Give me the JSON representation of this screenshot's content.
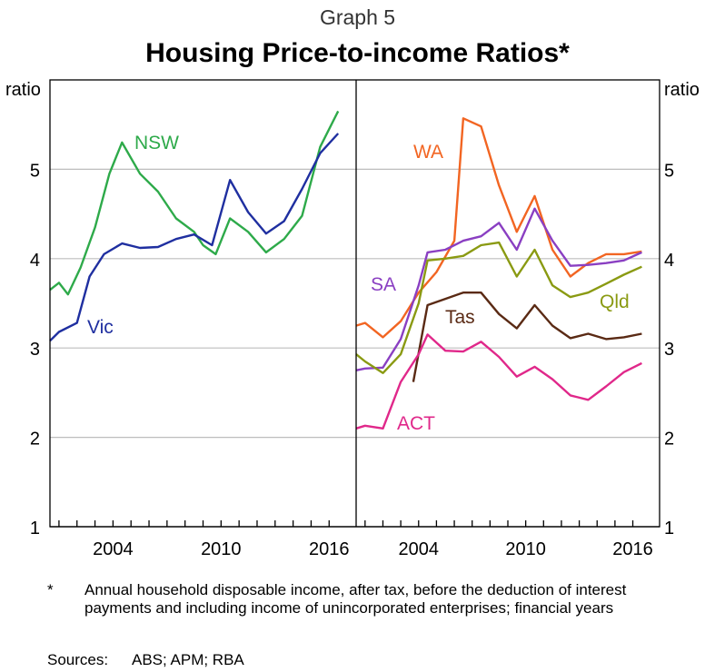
{
  "graph_label": "Graph 5",
  "footnote": {
    "marker": "*",
    "text": "Annual household disposable income, after tax, before the deduction of interest payments and including income of unincorporated enterprises; financial years"
  },
  "sources": {
    "label": "Sources:",
    "text": "ABS; APM; RBA"
  },
  "chart_data": [
    {
      "type": "line",
      "title": "Housing Price-to-income Ratios*",
      "ylabel": "ratio",
      "ylim": [
        1,
        6
      ],
      "xlim": [
        2000,
        2017
      ],
      "yticks": [
        1,
        2,
        3,
        4,
        5
      ],
      "xtick_labels": [
        2004,
        2010,
        2016
      ],
      "grid": true,
      "series": [
        {
          "name": "NSW",
          "color": "#2eaa4a",
          "x": [
            2000,
            2000.5,
            2001,
            2001.7,
            2002.5,
            2003.3,
            2004,
            2005,
            2006,
            2007,
            2008,
            2008.5,
            2009.2,
            2010,
            2011,
            2012,
            2013,
            2014,
            2015,
            2016
          ],
          "y": [
            3.65,
            3.73,
            3.6,
            3.9,
            4.35,
            4.95,
            5.3,
            4.95,
            4.75,
            4.45,
            4.3,
            4.15,
            4.05,
            4.45,
            4.3,
            4.07,
            4.22,
            4.48,
            5.25,
            5.65
          ]
        },
        {
          "name": "Vic",
          "color": "#1f2fa0",
          "x": [
            2000,
            2000.5,
            2001.5,
            2002.2,
            2003,
            2004,
            2005,
            2006,
            2007,
            2008,
            2009,
            2010,
            2011,
            2012,
            2013,
            2014,
            2015,
            2016
          ],
          "y": [
            3.08,
            3.18,
            3.28,
            3.8,
            4.05,
            4.17,
            4.12,
            4.13,
            4.22,
            4.27,
            4.15,
            4.88,
            4.52,
            4.28,
            4.42,
            4.78,
            5.18,
            5.4
          ]
        }
      ]
    },
    {
      "type": "line",
      "ylabel": "ratio",
      "ylim": [
        1,
        6
      ],
      "xlim": [
        2000,
        2017
      ],
      "yticks": [
        1,
        2,
        3,
        4,
        5
      ],
      "xtick_labels": [
        2004,
        2010,
        2016
      ],
      "grid": true,
      "series": [
        {
          "name": "WA",
          "color": "#f26522",
          "x": [
            2000,
            2000.5,
            2001.5,
            2002.5,
            2003.5,
            2004.5,
            2005.5,
            2006,
            2007,
            2008,
            2009,
            2010,
            2011,
            2012,
            2013,
            2014,
            2015,
            2016
          ],
          "y": [
            3.25,
            3.28,
            3.12,
            3.3,
            3.62,
            3.85,
            4.2,
            5.57,
            5.48,
            4.82,
            4.3,
            4.7,
            4.1,
            3.8,
            3.95,
            4.05,
            4.05,
            4.08
          ]
        },
        {
          "name": "SA",
          "color": "#8a3fc2",
          "x": [
            2000,
            2000.5,
            2001.5,
            2002.5,
            2003.5,
            2004,
            2005,
            2006,
            2007,
            2008,
            2009,
            2010,
            2011,
            2012,
            2013,
            2014,
            2015,
            2016
          ],
          "y": [
            2.75,
            2.77,
            2.78,
            3.1,
            3.7,
            4.07,
            4.1,
            4.2,
            4.25,
            4.4,
            4.1,
            4.56,
            4.2,
            3.92,
            3.93,
            3.95,
            3.98,
            4.07
          ]
        },
        {
          "name": "Qld",
          "color": "#8a9a12",
          "x": [
            2000,
            2000.5,
            2001.5,
            2002.5,
            2003.5,
            2004,
            2005,
            2006,
            2007,
            2008,
            2009,
            2010,
            2011,
            2012,
            2013,
            2014,
            2015,
            2016
          ],
          "y": [
            2.93,
            2.85,
            2.72,
            2.93,
            3.5,
            3.98,
            4.0,
            4.03,
            4.15,
            4.18,
            3.8,
            4.1,
            3.7,
            3.57,
            3.62,
            3.72,
            3.82,
            3.91
          ]
        },
        {
          "name": "Tas",
          "color": "#5a2a14",
          "x": [
            2003.2,
            2004,
            2005,
            2006,
            2007,
            2008,
            2009,
            2010,
            2011,
            2012,
            2013,
            2014,
            2015,
            2016
          ],
          "y": [
            2.62,
            3.48,
            3.55,
            3.62,
            3.62,
            3.38,
            3.22,
            3.48,
            3.25,
            3.11,
            3.16,
            3.1,
            3.12,
            3.16
          ]
        },
        {
          "name": "ACT",
          "color": "#e0288a",
          "x": [
            2000,
            2000.5,
            2001.5,
            2002.5,
            2003.5,
            2004,
            2005,
            2006,
            2007,
            2008,
            2009,
            2010,
            2011,
            2012,
            2013,
            2014,
            2015,
            2016
          ],
          "y": [
            2.1,
            2.13,
            2.1,
            2.62,
            2.93,
            3.15,
            2.97,
            2.96,
            3.07,
            2.9,
            2.68,
            2.79,
            2.65,
            2.47,
            2.42,
            2.57,
            2.73,
            2.83
          ]
        }
      ]
    }
  ]
}
